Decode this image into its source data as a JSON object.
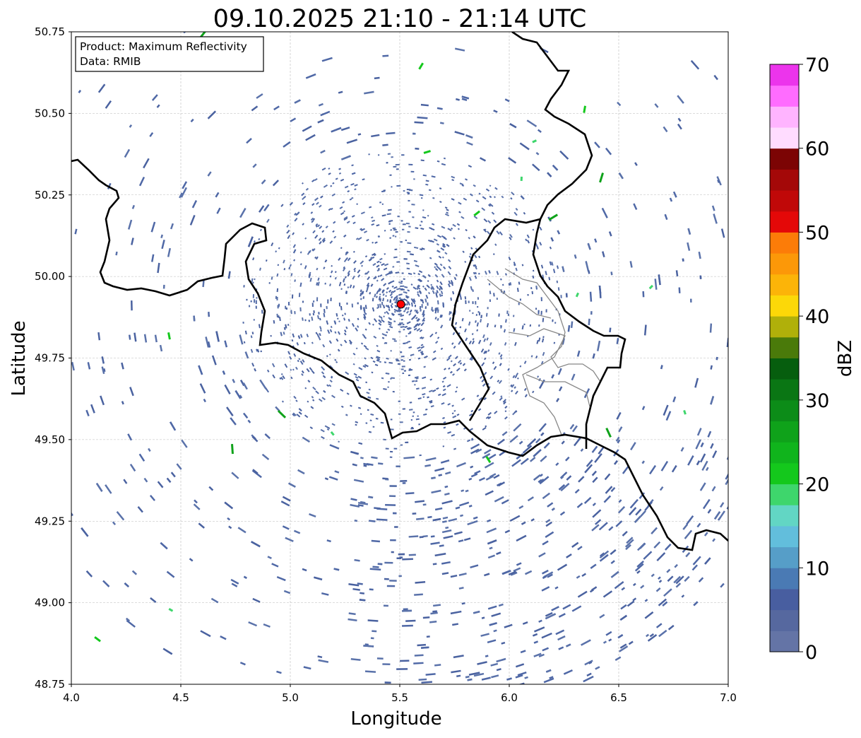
{
  "title": "09.10.2025 21:10 - 21:14 UTC",
  "info_box": {
    "line1": "Product: Maximum Reflectivity",
    "line2": "Data: RMIB"
  },
  "chart_data": {
    "type": "heatmap",
    "title": "09.10.2025 21:10 - 21:14 UTC",
    "xlabel": "Longitude",
    "ylabel": "Latitude",
    "xlim": [
      4.0,
      7.0
    ],
    "ylim": [
      48.75,
      50.75
    ],
    "x_ticks": [
      "4.0",
      "4.5",
      "5.0",
      "5.5",
      "6.0",
      "6.5",
      "7.0"
    ],
    "y_ticks": [
      "50.75",
      "50.50",
      "50.25",
      "50.00",
      "49.75",
      "49.50",
      "49.25",
      "49.00",
      "48.75"
    ],
    "grid": true,
    "radar_site": {
      "lon": 5.505,
      "lat": 49.915,
      "color": "#ff0000"
    },
    "colorbar": {
      "label": "dBZ",
      "range": [
        0,
        70
      ],
      "step": 2.5,
      "ticks": [
        "0",
        "10",
        "20",
        "30",
        "40",
        "50",
        "60",
        "70"
      ],
      "colors": [
        "#6474a6",
        "#56689f",
        "#485ea0",
        "#4a7ab4",
        "#569ec8",
        "#62bedc",
        "#62d6c4",
        "#3ed66c",
        "#14c81c",
        "#10b41c",
        "#0fa21a",
        "#0c8c18",
        "#0a7614",
        "#065e0e",
        "#4a7a0a",
        "#b0b00a",
        "#fcd808",
        "#fcb408",
        "#fc9808",
        "#fc7c08",
        "#e40808",
        "#c00808",
        "#a40808",
        "#7c0404",
        "#ffdcff",
        "#ffb4ff",
        "#ff6cff",
        "#ec34ec"
      ]
    }
  }
}
